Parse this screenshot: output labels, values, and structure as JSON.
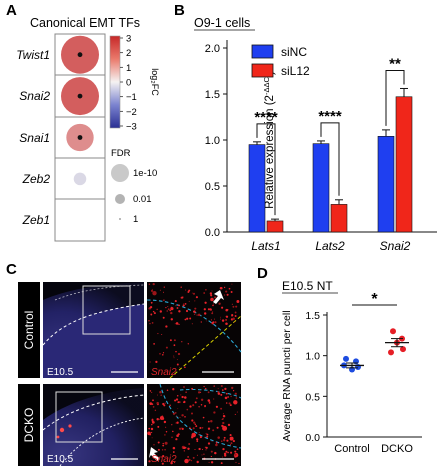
{
  "figure": {
    "panel_letters": [
      "A",
      "B",
      "C",
      "D"
    ],
    "colors": {
      "siNC": "#1f3ff0",
      "siL12": "#f0261a",
      "control_dots": "#1d4ce0",
      "dcko_dots": "#e61e26",
      "scalebar": "#ffffff",
      "dashed_white": "#ffffff",
      "dashed_yellow": "#d8d000",
      "dashed_cyan": "#2aa9d6"
    }
  },
  "panelA": {
    "title": "Canonical EMT TFs",
    "genes": [
      "Twist1",
      "Snai2",
      "Snai1",
      "Zeb2",
      "Zeb1"
    ],
    "colorbar": {
      "label": "log₂FC",
      "ticks": [
        "3",
        "2",
        "1",
        "0",
        "−1",
        "−2",
        "−3"
      ]
    },
    "fdr_legend": {
      "title": "FDR",
      "levels": [
        "1e-10",
        "0.01",
        "1"
      ]
    },
    "chart_data": {
      "type": "dotplot",
      "rows": [
        "Twist1",
        "Snai2",
        "Snai1",
        "Zeb2",
        "Zeb1"
      ],
      "log2FC": [
        2.2,
        2.2,
        1.5,
        -0.4,
        0.0
      ],
      "size_rel": [
        1.0,
        1.0,
        0.72,
        0.33,
        0.0
      ],
      "significant": [
        true,
        true,
        true,
        false,
        false
      ],
      "colorbar_range": [
        -3,
        3
      ]
    }
  },
  "panelB": {
    "title": "O9-1 cells",
    "ylabel": "Relative expression (2",
    "ylabel_sup": "-ΔΔCt",
    "ylabel_close": ")",
    "legend": [
      "siNC",
      "siL12"
    ],
    "significance": [
      "****",
      "****",
      "**"
    ],
    "y_ticks": [
      "0.0",
      "0.5",
      "1.0",
      "1.5",
      "2.0"
    ],
    "chart_data": {
      "type": "bar",
      "categories": [
        "Lats1",
        "Lats2",
        "Snai2"
      ],
      "series": [
        {
          "name": "siNC",
          "values": [
            0.95,
            0.96,
            1.04
          ],
          "errors": [
            0.03,
            0.03,
            0.07
          ]
        },
        {
          "name": "siL12",
          "values": [
            0.12,
            0.3,
            1.47
          ],
          "errors": [
            0.02,
            0.05,
            0.09
          ]
        }
      ],
      "ylim": [
        0,
        2.0
      ]
    }
  },
  "panelC": {
    "rows": [
      "Control",
      "DCKO"
    ],
    "stage": "E10.5",
    "stain": "Snai2"
  },
  "panelD": {
    "title": "E10.5 NT",
    "ylabel": "Average RNA puncti per cell",
    "significance": "*",
    "y_ticks": [
      "0.0",
      "0.5",
      "1.0",
      "1.5"
    ],
    "chart_data": {
      "type": "scatter",
      "categories": [
        "Control",
        "DCKO"
      ],
      "series": [
        {
          "name": "Control",
          "values": [
            0.96,
            0.83,
            0.88,
            0.86,
            0.93
          ],
          "mean": 0.88,
          "sem": 0.03
        },
        {
          "name": "DCKO",
          "values": [
            1.3,
            1.08,
            1.16,
            1.04,
            1.21
          ],
          "mean": 1.16,
          "sem": 0.05
        }
      ],
      "ylim": [
        0,
        1.5
      ]
    }
  }
}
